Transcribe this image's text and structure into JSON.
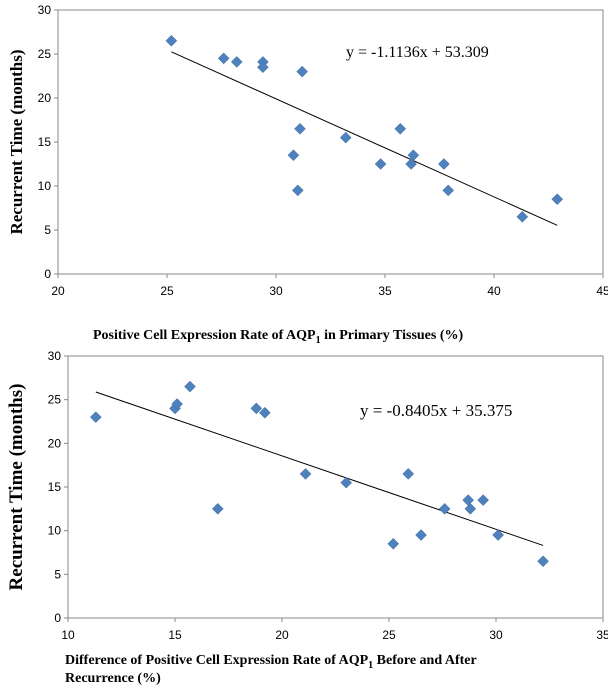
{
  "chart_data": [
    {
      "type": "scatter",
      "ylabel": "Recurrent Time (months)",
      "xlabel_lines": [
        {
          "pre": "Positive Cell Expression Rate of AQP",
          "sub": "1",
          "post": " in Primary Tissues (%)"
        }
      ],
      "equation": "y = -1.1136x + 53.309",
      "xlim": [
        20,
        45
      ],
      "ylim": [
        0,
        30
      ],
      "xticks": [
        20,
        25,
        30,
        35,
        40,
        45
      ],
      "yticks": [
        0,
        5,
        10,
        15,
        20,
        25,
        30
      ],
      "grid": false,
      "trendline": {
        "slope": -1.1136,
        "intercept": 53.309,
        "x_start": 25.2,
        "x_end": 42.9
      },
      "series": [
        {
          "color": "#4f81bd",
          "points": [
            [
              25.2,
              26.5
            ],
            [
              27.6,
              24.5
            ],
            [
              28.2,
              24.1
            ],
            [
              29.4,
              24.1
            ],
            [
              29.4,
              23.5
            ],
            [
              31.2,
              23.0
            ],
            [
              30.8,
              13.5
            ],
            [
              31.0,
              9.5
            ],
            [
              31.1,
              16.5
            ],
            [
              33.2,
              15.5
            ],
            [
              34.8,
              12.5
            ],
            [
              35.7,
              16.5
            ],
            [
              36.2,
              12.5
            ],
            [
              36.3,
              13.5
            ],
            [
              37.7,
              12.5
            ],
            [
              37.9,
              9.5
            ],
            [
              41.3,
              6.5
            ],
            [
              42.9,
              8.5
            ]
          ]
        }
      ]
    },
    {
      "type": "scatter",
      "ylabel": "Recurrent Time (months)",
      "xlabel_lines": [
        {
          "pre": "Difference of Positive Cell Expression Rate of AQP",
          "sub": "1",
          "post": " Before and After"
        },
        {
          "pre": "Recurrence (%)",
          "sub": "",
          "post": ""
        }
      ],
      "equation": "y = -0.8405x + 35.375",
      "xlim": [
        10,
        35
      ],
      "ylim": [
        0,
        30
      ],
      "xticks": [
        10,
        15,
        20,
        25,
        30,
        35
      ],
      "yticks": [
        0,
        5,
        10,
        15,
        20,
        25,
        30
      ],
      "grid": false,
      "trendline": {
        "slope": -0.8405,
        "intercept": 35.375,
        "x_start": 11.3,
        "x_end": 32.2
      },
      "series": [
        {
          "color": "#4f81bd",
          "points": [
            [
              11.3,
              23.0
            ],
            [
              15.0,
              24.0
            ],
            [
              15.1,
              24.5
            ],
            [
              15.7,
              26.5
            ],
            [
              18.8,
              24.0
            ],
            [
              19.2,
              23.5
            ],
            [
              17.0,
              12.5
            ],
            [
              21.1,
              16.5
            ],
            [
              23.0,
              15.5
            ],
            [
              25.2,
              8.5
            ],
            [
              25.9,
              16.5
            ],
            [
              26.5,
              9.5
            ],
            [
              27.6,
              12.5
            ],
            [
              28.7,
              13.5
            ],
            [
              28.8,
              12.5
            ],
            [
              29.4,
              13.5
            ],
            [
              30.1,
              9.5
            ],
            [
              32.2,
              6.5
            ]
          ]
        }
      ]
    }
  ]
}
